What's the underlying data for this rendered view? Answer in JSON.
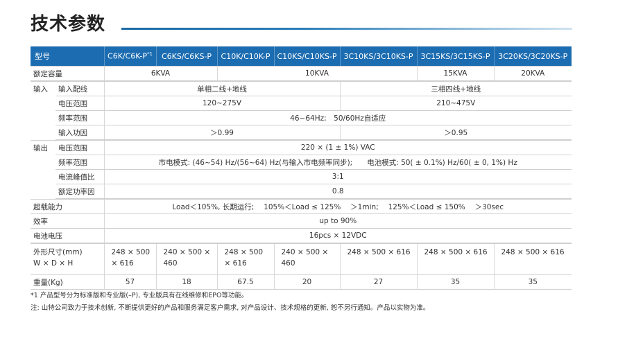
{
  "title": "技术参数",
  "header": {
    "label": "型号",
    "models": [
      "C6K/C6K-P",
      "C6KS/C6KS-P",
      "C10K/C10K-P",
      "C10KS/C10KS-P",
      "3C10KS/3C10KS-P",
      "3C15KS/3C15KS-P",
      "3C20KS/3C20KS-P"
    ],
    "footnote_mark": "*1"
  },
  "rows": {
    "capacity": {
      "label": "额定容量",
      "values": [
        "6KVA",
        "10KVA",
        "15KVA",
        "20KVA"
      ]
    },
    "input": {
      "group": "输入",
      "wiring": {
        "label": "输入配线",
        "values": [
          "单相二线+地线",
          "三相四线+地线"
        ]
      },
      "voltage": {
        "label": "电压范围",
        "values": [
          "120~275V",
          "210~475V"
        ]
      },
      "frequency": {
        "label": "频率范围",
        "value": "46~64Hz;　50/60Hz自适应"
      },
      "pf": {
        "label": "输入功因",
        "values": [
          "＞0.99",
          "＞0.95"
        ]
      }
    },
    "output": {
      "group": "输出",
      "voltage": {
        "label": "电压范围",
        "value": "220 × (1 ± 1%) VAC"
      },
      "frequency": {
        "label": "频率范围",
        "value": "市电模式: (46~54) Hz/(56~64) Hz(与输入市电频率同步);　　电池模式: 50( ± 0.1%) Hz/60( ± 0, 1%) Hz"
      },
      "crest": {
        "label": "电流峰值比",
        "value": "3:1"
      },
      "pf": {
        "label": "额定功率因",
        "value": "0.8"
      }
    },
    "overload": {
      "label": "超载能力",
      "value": "Load＜105%, 长期运行;　 105%＜Load ≤ 125%　 ＞1min;　 125%＜Load ≤ 150%　 ＞30sec"
    },
    "efficiency": {
      "label": "效率",
      "value": "up to 90%"
    },
    "battery": {
      "label": "电池电压",
      "value": "16pcs × 12VDC"
    },
    "dimensions": {
      "label": "外形尺寸(mm)",
      "label2": "W × D × H",
      "values": [
        "248 × 500 × 616",
        "240 × 500 × 460",
        "248 × 500 × 616",
        "240 × 500 × 460",
        "248 × 500 × 616",
        "248 × 500 × 616",
        "248 × 500 × 616"
      ]
    },
    "weight": {
      "label": "重量(Kg)",
      "values": [
        "57",
        "18",
        "67.5",
        "20",
        "27",
        "35",
        "35"
      ]
    }
  },
  "notes": [
    "*1 产品型号分为标准版和专业版(–P), 专业版具有在线维修和EPO等功能。",
    "注: 山特公司致力于技术创新, 不断提供更好的产品和服务满足客户需求, 对产品设计、技术规格的更新, 恕不另行通知。产品以实物为准。"
  ],
  "colors": {
    "header": "#1c6cb1",
    "rule": "#1b6aa6"
  }
}
